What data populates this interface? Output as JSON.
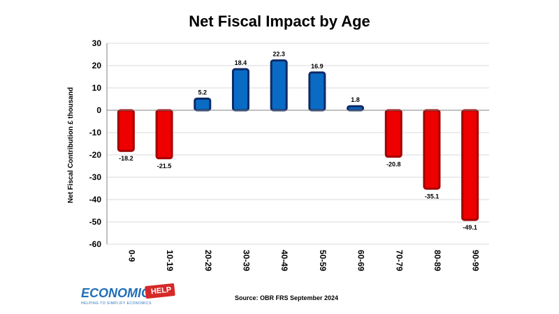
{
  "chart_data": {
    "type": "bar",
    "title": "Net Fiscal Impact by Age",
    "xlabel": "",
    "ylabel": "Net Fiscal Contribution £ thousand",
    "ylim": [
      -60,
      30
    ],
    "yticks": [
      30,
      20,
      10,
      0,
      -10,
      -20,
      -30,
      -40,
      -50,
      -60
    ],
    "categories": [
      "0-9",
      "10-19",
      "20-29",
      "30-39",
      "40-49",
      "50-59",
      "60-69",
      "70-79",
      "80-89",
      "90-99"
    ],
    "values": [
      -18.2,
      -21.5,
      5.2,
      18.4,
      22.3,
      16.9,
      1.8,
      -20.8,
      -35.1,
      -49.1
    ],
    "data_labels": [
      "-18.2",
      "-21.5",
      "5.2",
      "18.4",
      "22.3",
      "16.9",
      "1.8",
      "-20.8",
      "-35.1",
      "-49.1"
    ],
    "grid": true,
    "colors": {
      "positive_fill": "#0a6bc4",
      "positive_stroke": "#0d2a66",
      "negative_fill": "#ee0000",
      "negative_stroke": "#a40000",
      "grid": "#d9d9d9",
      "axis": "#808080"
    }
  },
  "footer": {
    "source": "Source: OBR FRS September 2024",
    "logo_word": "ECONOMICS",
    "logo_badge": "HELP",
    "logo_tagline": "HELPING TO SIMPLIFY ECONOMICS"
  }
}
